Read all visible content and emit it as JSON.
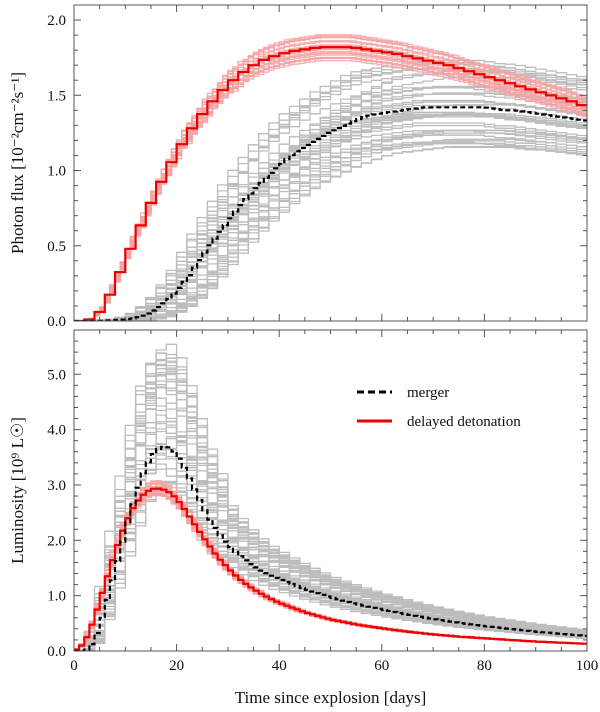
{
  "chart_data": [
    {
      "type": "line",
      "panel": "top",
      "ylabel": "Photon flux [10⁻²cm⁻²s⁻¹]",
      "xlabel": "",
      "xlim": [
        0,
        100
      ],
      "ylim": [
        0,
        2.1
      ],
      "xticks": [
        0,
        20,
        40,
        60,
        80,
        100
      ],
      "yticks": [
        0.0,
        0.5,
        1.0,
        1.5,
        2.0
      ],
      "ytick_labels": [
        "0.0",
        "0.5",
        "1.0",
        "1.5",
        "2.0"
      ],
      "series": [
        {
          "name": "merger",
          "color": "#000000",
          "style": "dashed",
          "x": [
            0,
            5,
            10,
            12,
            14,
            16,
            18,
            20,
            22,
            24,
            26,
            28,
            30,
            32,
            34,
            36,
            38,
            40,
            42,
            44,
            46,
            48,
            50,
            52,
            54,
            56,
            58,
            60,
            62,
            64,
            66,
            68,
            70,
            72,
            74,
            76,
            78,
            80,
            82,
            84,
            86,
            88,
            90,
            92,
            94,
            96,
            98,
            100
          ],
          "values": [
            0.0,
            0.0,
            0.01,
            0.02,
            0.04,
            0.08,
            0.13,
            0.2,
            0.28,
            0.38,
            0.48,
            0.57,
            0.66,
            0.75,
            0.83,
            0.9,
            0.97,
            1.03,
            1.09,
            1.14,
            1.18,
            1.22,
            1.26,
            1.29,
            1.32,
            1.35,
            1.37,
            1.38,
            1.39,
            1.4,
            1.41,
            1.42,
            1.42,
            1.42,
            1.42,
            1.42,
            1.42,
            1.42,
            1.41,
            1.4,
            1.4,
            1.39,
            1.38,
            1.37,
            1.36,
            1.35,
            1.34,
            1.33
          ]
        },
        {
          "name": "delayed detonation",
          "color": "#ee0000",
          "style": "solid",
          "x": [
            0,
            2,
            4,
            6,
            8,
            10,
            12,
            14,
            16,
            18,
            20,
            22,
            24,
            26,
            28,
            30,
            32,
            34,
            36,
            38,
            40,
            42,
            44,
            46,
            48,
            50,
            52,
            54,
            56,
            58,
            60,
            62,
            64,
            66,
            68,
            70,
            72,
            74,
            76,
            78,
            80,
            82,
            84,
            86,
            88,
            90,
            92,
            94,
            96,
            98,
            100
          ],
          "values": [
            0.0,
            0.0,
            0.02,
            0.1,
            0.25,
            0.4,
            0.56,
            0.71,
            0.86,
            0.99,
            1.12,
            1.23,
            1.33,
            1.42,
            1.5,
            1.57,
            1.63,
            1.68,
            1.72,
            1.75,
            1.77,
            1.79,
            1.8,
            1.81,
            1.82,
            1.82,
            1.82,
            1.82,
            1.81,
            1.8,
            1.79,
            1.78,
            1.77,
            1.75,
            1.74,
            1.72,
            1.71,
            1.69,
            1.67,
            1.65,
            1.63,
            1.61,
            1.59,
            1.57,
            1.55,
            1.53,
            1.51,
            1.49,
            1.47,
            1.45,
            1.42
          ]
        }
      ]
    },
    {
      "type": "line",
      "panel": "bottom",
      "ylabel": "Luminosity [10⁹ L☉]",
      "xlabel": "Time since explosion [days]",
      "xlim": [
        0,
        100
      ],
      "ylim": [
        0,
        5.8
      ],
      "xticks": [
        0,
        20,
        40,
        60,
        80,
        100
      ],
      "xtick_labels": [
        "0",
        "20",
        "40",
        "60",
        "80",
        "100"
      ],
      "yticks": [
        0.0,
        1.0,
        2.0,
        3.0,
        4.0,
        5.0
      ],
      "ytick_labels": [
        "0.0",
        "1.0",
        "2.0",
        "3.0",
        "4.0",
        "5.0"
      ],
      "series": [
        {
          "name": "merger",
          "color": "#000000",
          "style": "dashed",
          "x": [
            0,
            1,
            2,
            3,
            4,
            5,
            6,
            7,
            8,
            9,
            10,
            11,
            12,
            13,
            14,
            15,
            16,
            17,
            18,
            19,
            20,
            21,
            22,
            23,
            24,
            26,
            28,
            30,
            32,
            34,
            36,
            38,
            40,
            45,
            50,
            55,
            60,
            65,
            70,
            75,
            80,
            85,
            90,
            95,
            100
          ],
          "values": [
            0.0,
            0.0,
            0.0,
            0.05,
            0.2,
            0.45,
            0.75,
            1.1,
            1.45,
            1.8,
            2.15,
            2.5,
            2.8,
            3.1,
            3.32,
            3.5,
            3.62,
            3.68,
            3.7,
            3.66,
            3.55,
            3.4,
            3.22,
            3.02,
            2.82,
            2.45,
            2.15,
            1.92,
            1.75,
            1.6,
            1.48,
            1.38,
            1.3,
            1.12,
            0.97,
            0.85,
            0.75,
            0.66,
            0.58,
            0.51,
            0.45,
            0.4,
            0.35,
            0.31,
            0.27
          ]
        },
        {
          "name": "delayed detonation",
          "color": "#ee0000",
          "style": "solid",
          "x": [
            0,
            1,
            2,
            3,
            4,
            5,
            6,
            7,
            8,
            9,
            10,
            11,
            12,
            13,
            14,
            15,
            16,
            17,
            18,
            19,
            20,
            21,
            22,
            23,
            24,
            26,
            28,
            30,
            32,
            34,
            36,
            38,
            40,
            45,
            50,
            55,
            60,
            65,
            70,
            75,
            80,
            85,
            90,
            95,
            100
          ],
          "values": [
            0.0,
            0.05,
            0.15,
            0.35,
            0.6,
            0.9,
            1.2,
            1.5,
            1.78,
            2.05,
            2.3,
            2.5,
            2.66,
            2.78,
            2.87,
            2.92,
            2.94,
            2.93,
            2.9,
            2.84,
            2.75,
            2.63,
            2.5,
            2.36,
            2.22,
            1.95,
            1.7,
            1.5,
            1.32,
            1.18,
            1.06,
            0.96,
            0.87,
            0.7,
            0.57,
            0.48,
            0.41,
            0.35,
            0.3,
            0.26,
            0.23,
            0.2,
            0.17,
            0.15,
            0.13
          ]
        }
      ],
      "legend": {
        "position": "upper-right",
        "entries": [
          {
            "label": "merger",
            "color": "#000000",
            "style": "dashed"
          },
          {
            "label": "delayed detonation",
            "color": "#ee0000",
            "style": "solid"
          }
        ]
      }
    }
  ],
  "colors": {
    "model_spread": "#bdbdbd",
    "dd_band": "#f5a3a3",
    "merger": "#000000",
    "delayed_detonation": "#ee0000"
  }
}
